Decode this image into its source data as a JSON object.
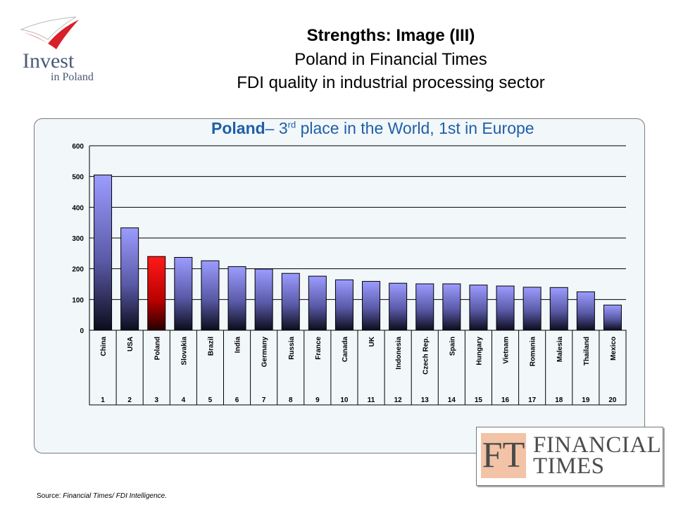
{
  "logo": {
    "line1": "Invest",
    "line2": "in Poland"
  },
  "header": {
    "title": "Strengths: Image (III)",
    "subtitle1": "Poland in Financial Times",
    "subtitle2": "FDI quality in industrial processing sector"
  },
  "chart_subtitle": {
    "bold": "Poland",
    "dash": "– 3",
    "sup": "rd",
    "rest": " place in the World, 1st in Europe"
  },
  "chart_data": {
    "type": "bar",
    "title": "Poland– 3rd place in the World, 1st in Europe",
    "categories": [
      "China",
      "USA",
      "Poland",
      "Slovakia",
      "Brazil",
      "India",
      "Germany",
      "Russia",
      "France",
      "Canada",
      "UK",
      "Indonesia",
      "Czech Rep.",
      "Spain",
      "Hungary",
      "Vietnam",
      "Romania",
      "Malesia",
      "Thailand",
      "Mexico"
    ],
    "ranks": [
      "1",
      "2",
      "3",
      "4",
      "5",
      "6",
      "7",
      "8",
      "9",
      "10",
      "11",
      "12",
      "13",
      "14",
      "15",
      "16",
      "17",
      "18",
      "19",
      "20"
    ],
    "values": [
      505,
      333,
      240,
      237,
      226,
      207,
      199,
      185,
      176,
      164,
      159,
      153,
      151,
      151,
      147,
      144,
      140,
      139,
      125,
      82
    ],
    "ylim": [
      0,
      600
    ],
    "yticks": [
      0,
      100,
      200,
      300,
      400,
      500,
      600
    ],
    "highlight_category": "Poland",
    "colors": {
      "bar_top": "#9c9cff",
      "bar_bottom": "#0c0c1c",
      "highlight_top": "#ff1a1a",
      "highlight_bottom": "#250000"
    },
    "grid": true
  },
  "ft_logo": {
    "mark": "FT",
    "line1": "FINANCIAL",
    "line2": "TIMES"
  },
  "source": {
    "label": "Source: ",
    "text": "Financial Times/ FDI Intelligence."
  }
}
